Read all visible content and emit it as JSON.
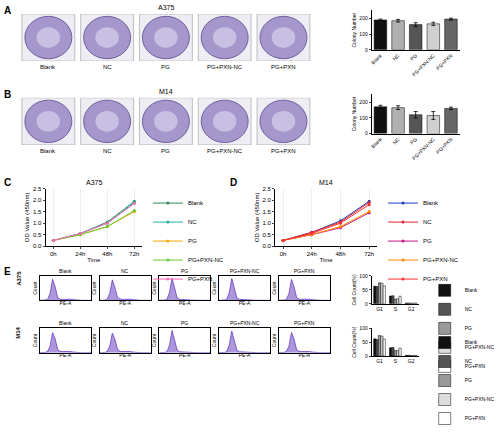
{
  "chart_data": [
    {
      "type": "image_panels",
      "title": "A375",
      "annotations": [
        "A"
      ],
      "categories": [
        "Blank",
        "NC",
        "PG",
        "PG+PXN-NC",
        "PG+PXN"
      ]
    },
    {
      "type": "bar",
      "ylabel": "Colony Number",
      "categories": [
        "Blank",
        "NC",
        "PG",
        "PG+PXN-NC",
        "PG+PXN"
      ],
      "values": [
        190,
        185,
        160,
        165,
        195
      ],
      "errors": [
        5,
        8,
        12,
        10,
        6
      ],
      "colors": [
        "#111111",
        "#b0b0b0",
        "#555555",
        "#d0d0d0",
        "#666666"
      ],
      "ylim": [
        0,
        250
      ],
      "yticks": [
        0,
        100,
        200
      ]
    },
    {
      "type": "image_panels",
      "title": "M14",
      "annotations": [
        "B"
      ],
      "categories": [
        "Blank",
        "NC",
        "PG",
        "PG+PXN-NC",
        "PG+PXN"
      ]
    },
    {
      "type": "bar",
      "ylabel": "Colony Number",
      "categories": [
        "Blank",
        "NC",
        "PG",
        "PG+PXN-NC",
        "PG+PXN"
      ],
      "values": [
        170,
        165,
        120,
        115,
        160
      ],
      "errors": [
        10,
        12,
        20,
        25,
        8
      ],
      "colors": [
        "#111111",
        "#b0b0b0",
        "#555555",
        "#d0d0d0",
        "#666666"
      ],
      "ylim": [
        0,
        250
      ],
      "yticks": [
        0,
        100,
        200
      ]
    },
    {
      "type": "line",
      "title": "A375",
      "annotations": [
        "C"
      ],
      "xlabel": "Time",
      "ylabel": "OD Value (450nm)",
      "categories": [
        "0h",
        "24h",
        "48h",
        "72h"
      ],
      "series": [
        {
          "name": "Blank",
          "color": "#2e8b57",
          "values": [
            0.25,
            0.55,
            1.05,
            1.95
          ]
        },
        {
          "name": "NC",
          "color": "#20b2aa",
          "values": [
            0.25,
            0.55,
            1.0,
            1.9
          ]
        },
        {
          "name": "PG",
          "color": "#ffa500",
          "values": [
            0.25,
            0.5,
            0.85,
            1.5
          ]
        },
        {
          "name": "PG+PXN-NC",
          "color": "#66cc33",
          "values": [
            0.25,
            0.5,
            0.85,
            1.55
          ]
        },
        {
          "name": "PG+PXN",
          "color": "#ff69b4",
          "values": [
            0.25,
            0.55,
            1.0,
            1.85
          ]
        }
      ],
      "ylim": [
        0,
        2.5
      ],
      "yticks": [
        {
          "value": 0,
          "label": "0.0"
        },
        0.5,
        {
          "value": 1,
          "label": "1.0"
        },
        1.5,
        {
          "value": 2,
          "label": "2.0"
        },
        2.5
      ],
      "marker": "circle",
      "legend": "right"
    },
    {
      "type": "line",
      "title": "M14",
      "annotations": [
        "D"
      ],
      "xlabel": "Time",
      "ylabel": "OD Value (450nm)",
      "categories": [
        "0h",
        "24h",
        "48h",
        "72h"
      ],
      "series": [
        {
          "name": "Blank",
          "color": "#1f3fbf",
          "values": [
            0.25,
            0.6,
            1.1,
            1.95
          ]
        },
        {
          "name": "NC",
          "color": "#e32636",
          "values": [
            0.25,
            0.6,
            1.05,
            1.9
          ]
        },
        {
          "name": "PG",
          "color": "#c71585",
          "values": [
            0.25,
            0.5,
            0.8,
            1.45
          ]
        },
        {
          "name": "PG+PXN-NC",
          "color": "#ff8c00",
          "values": [
            0.25,
            0.5,
            0.85,
            1.5
          ]
        },
        {
          "name": "PG+PXN",
          "color": "#ff3030",
          "values": [
            0.25,
            0.55,
            1.0,
            1.8
          ]
        }
      ],
      "ylim": [
        0,
        2.5
      ],
      "yticks": [
        {
          "value": 0,
          "label": "0.0"
        },
        0.5,
        {
          "value": 1,
          "label": "1.0"
        },
        1.5,
        {
          "value": 2,
          "label": "2.0"
        },
        2.5
      ],
      "marker": "circle",
      "legend": "right"
    },
    {
      "type": "histogram_panels",
      "title": "A375",
      "annotations": [
        "E"
      ],
      "xlabel": "PE-A",
      "ylabel": "Count",
      "x": [
        0,
        50,
        100,
        150,
        200,
        250,
        300,
        350,
        400,
        450,
        500,
        550,
        600,
        650,
        700,
        750,
        800,
        850,
        900,
        950,
        1000
      ],
      "series": [
        {
          "name": "Blank",
          "color": "#6a3fbf",
          "values": [
            0,
            0,
            1,
            4,
            30,
            95,
            60,
            12,
            5,
            4,
            5,
            6,
            5,
            3,
            1,
            0,
            0,
            0,
            0,
            0,
            0
          ]
        },
        {
          "name": "NC",
          "color": "#6a3fbf",
          "values": [
            0,
            0,
            1,
            5,
            32,
            92,
            58,
            13,
            6,
            4,
            5,
            6,
            5,
            3,
            1,
            0,
            0,
            0,
            0,
            0,
            0
          ]
        },
        {
          "name": "PG",
          "color": "#6a3fbf",
          "values": [
            0,
            0,
            1,
            4,
            36,
            100,
            55,
            10,
            4,
            3,
            3,
            4,
            3,
            2,
            1,
            0,
            0,
            0,
            0,
            0,
            0
          ]
        },
        {
          "name": "PG+PXN-NC",
          "color": "#6a3fbf",
          "values": [
            0,
            0,
            1,
            4,
            35,
            98,
            56,
            10,
            4,
            3,
            3,
            4,
            3,
            2,
            1,
            0,
            0,
            0,
            0,
            0,
            0
          ]
        },
        {
          "name": "PG+PXN",
          "color": "#6a3fbf",
          "values": [
            0,
            0,
            1,
            4,
            30,
            94,
            60,
            12,
            5,
            4,
            5,
            6,
            5,
            3,
            1,
            0,
            0,
            0,
            0,
            0,
            0
          ]
        }
      ],
      "xlim": [
        0,
        1000
      ],
      "ylim": [
        0,
        110
      ],
      "tick_labels": false
    },
    {
      "type": "histogram_panels",
      "title": "M14",
      "xlabel": "PE-A",
      "ylabel": "Count",
      "x": [
        0,
        50,
        100,
        150,
        200,
        250,
        300,
        350,
        400,
        450,
        500,
        550,
        600,
        650,
        700,
        750,
        800,
        850,
        900,
        950,
        1000
      ],
      "series": [
        {
          "name": "Blank",
          "color": "#6a3fbf",
          "values": [
            0,
            0,
            1,
            5,
            28,
            90,
            62,
            14,
            6,
            5,
            6,
            7,
            5,
            3,
            1,
            0,
            0,
            0,
            0,
            0,
            0
          ]
        },
        {
          "name": "NC",
          "color": "#6a3fbf",
          "values": [
            0,
            0,
            1,
            5,
            30,
            88,
            60,
            15,
            6,
            5,
            6,
            7,
            5,
            3,
            1,
            0,
            0,
            0,
            0,
            0,
            0
          ]
        },
        {
          "name": "PG",
          "color": "#6a3fbf",
          "values": [
            0,
            0,
            1,
            4,
            34,
            100,
            56,
            11,
            4,
            3,
            4,
            4,
            3,
            2,
            1,
            0,
            0,
            0,
            0,
            0,
            0
          ]
        },
        {
          "name": "PG+PXN-NC",
          "color": "#6a3fbf",
          "values": [
            0,
            0,
            1,
            4,
            33,
            97,
            57,
            11,
            4,
            3,
            4,
            4,
            3,
            2,
            1,
            0,
            0,
            0,
            0,
            0,
            0
          ]
        },
        {
          "name": "PG+PXN",
          "color": "#6a3fbf",
          "values": [
            0,
            0,
            1,
            5,
            29,
            91,
            61,
            13,
            6,
            5,
            6,
            7,
            5,
            3,
            1,
            0,
            0,
            0,
            0,
            0,
            0
          ]
        }
      ],
      "xlim": [
        0,
        1000
      ],
      "ylim": [
        0,
        110
      ],
      "tick_labels": false
    },
    {
      "type": "bar",
      "ylabel": "Cell Count(%)",
      "categories": [
        "G1",
        "S",
        "G2"
      ],
      "series": [
        {
          "name": "Blank",
          "color": "#111111",
          "values": [
            63,
            28,
            3
          ]
        },
        {
          "name": "NC",
          "color": "#555555",
          "values": [
            62,
            29,
            3
          ]
        },
        {
          "name": "PG",
          "color": "#999999",
          "values": [
            75,
            17,
            2
          ]
        },
        {
          "name": "PG+PXN-NC",
          "color": "#dddddd",
          "values": [
            74,
            18,
            2
          ]
        },
        {
          "name": "PG+PXN",
          "color": "#ffffff",
          "values": [
            64,
            27,
            3
          ]
        }
      ],
      "ylim": [
        0,
        100
      ],
      "yticks": [
        0,
        50,
        100
      ],
      "legend": "right"
    },
    {
      "type": "bar",
      "ylabel": "Cell Count(%)",
      "categories": [
        "G1",
        "S",
        "G2"
      ],
      "series": [
        {
          "name": "Blank",
          "color": "#111111",
          "values": [
            62,
            30,
            3
          ]
        },
        {
          "name": "NC",
          "color": "#555555",
          "values": [
            60,
            31,
            3
          ]
        },
        {
          "name": "PG",
          "color": "#999999",
          "values": [
            74,
            20,
            2
          ]
        },
        {
          "name": "PG+PXN-NC",
          "color": "#dddddd",
          "values": [
            72,
            21,
            2
          ]
        },
        {
          "name": "PG+PXN",
          "color": "#ffffff",
          "values": [
            61,
            29,
            3
          ]
        }
      ],
      "ylim": [
        0,
        100
      ],
      "yticks": [
        0,
        50,
        100
      ],
      "legend": "right"
    }
  ]
}
